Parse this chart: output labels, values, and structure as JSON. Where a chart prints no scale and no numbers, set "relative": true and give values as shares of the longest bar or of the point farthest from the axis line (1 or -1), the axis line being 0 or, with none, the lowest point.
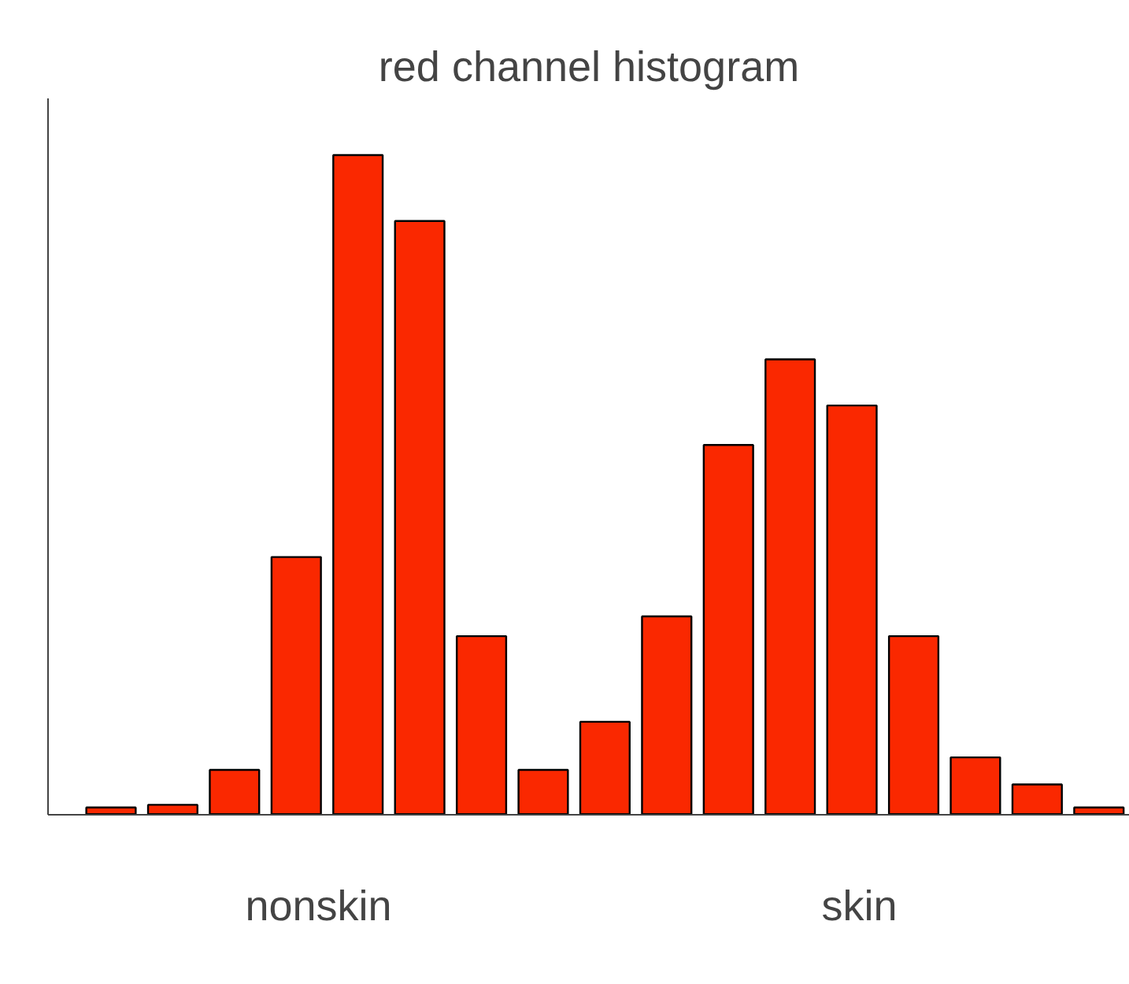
{
  "chart_data": {
    "type": "bar",
    "title": "red channel histogram",
    "relative": true,
    "categories": [
      null,
      null,
      null,
      null,
      null,
      null,
      null,
      null,
      null,
      null,
      null,
      null,
      null,
      null,
      null,
      null,
      null
    ],
    "values": [
      0.01,
      0.014,
      0.067,
      0.39,
      1,
      0.9,
      0.27,
      0.067,
      0.14,
      0.3,
      0.56,
      0.69,
      0.62,
      0.27,
      0.086,
      0.045,
      0.01
    ],
    "color": "#fa2800",
    "annotations": [
      "nonskin",
      "skin"
    ],
    "grid": false
  }
}
